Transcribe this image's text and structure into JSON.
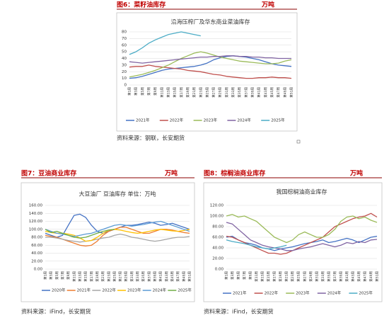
{
  "chart_data": [
    {
      "type": "line",
      "caption": "图6：菜籽油库存",
      "unit": "万吨",
      "title": "沿海压榨厂及华东商业菜油库存",
      "source": "资料来源：钢联，长安期货",
      "categories": [
        "第1周",
        "第3周",
        "第5周",
        "第7周",
        "第9周",
        "第11周",
        "第13周",
        "第15周",
        "第17周",
        "第19周",
        "第21周",
        "第23周",
        "第25周",
        "第27周",
        "第29周",
        "第31周",
        "第33周",
        "第35周",
        "第37周",
        "第39周",
        "第41周",
        "第43周",
        "第45周",
        "第47周",
        "第49周",
        "第51周"
      ],
      "ylim": [
        0,
        80
      ],
      "yticks": [
        0,
        10,
        20,
        30,
        40,
        50,
        60,
        70,
        80
      ],
      "grid": true,
      "series": [
        {
          "name": "2021年",
          "color": "#4472c4",
          "values": [
            10,
            11,
            13,
            16,
            19,
            22,
            24,
            25,
            26,
            27,
            28,
            30,
            33,
            38,
            41,
            43,
            44,
            43,
            42,
            40,
            38,
            35,
            32,
            30,
            29,
            28
          ]
        },
        {
          "name": "2022年",
          "color": "#c0504d",
          "values": [
            27,
            28,
            28,
            30,
            28,
            27,
            26,
            25,
            24,
            22,
            21,
            20,
            18,
            16,
            15,
            13,
            12,
            11,
            10,
            10,
            11,
            11,
            12,
            11,
            11,
            10
          ]
        },
        {
          "name": "2023年",
          "color": "#9bbb59",
          "values": [
            12,
            14,
            16,
            19,
            22,
            26,
            30,
            35,
            40,
            44,
            48,
            50,
            48,
            45,
            42,
            40,
            38,
            36,
            35,
            34,
            33,
            32,
            32,
            33,
            36,
            38
          ]
        },
        {
          "name": "2024年",
          "color": "#8064a2",
          "values": [
            35,
            34,
            33,
            34,
            35,
            36,
            37,
            38,
            39,
            40,
            41,
            42,
            42,
            43,
            43,
            44,
            44,
            43,
            43,
            42,
            42,
            41,
            41,
            40,
            40,
            40
          ]
        },
        {
          "name": "2025年",
          "color": "#4bacc6",
          "values": [
            46,
            50,
            56,
            63,
            68,
            72,
            76,
            78,
            80,
            78,
            76,
            74,
            null,
            null,
            null,
            null,
            null,
            null,
            null,
            null,
            null,
            null,
            null,
            null,
            null,
            null
          ]
        }
      ]
    },
    {
      "type": "line",
      "caption": "图7：豆油商业库存",
      "unit": "万吨",
      "title": "大豆油厂 豆油库存 单位：万吨",
      "source": "资料来源：iFind，长安期货",
      "categories": [
        "第1周",
        "第3周",
        "第5周",
        "第7周",
        "第9周",
        "第11周",
        "第13周",
        "第15周",
        "第17周",
        "第19周",
        "第21周",
        "第23周",
        "第25周",
        "第27周",
        "第29周",
        "第31周",
        "第33周",
        "第35周",
        "第37周",
        "第39周",
        "第41周",
        "第43周",
        "第45周",
        "第47周",
        "第49周",
        "第51周"
      ],
      "ylim": [
        0,
        160
      ],
      "yticks": [
        {
          "value": 0,
          "label": "0.00"
        },
        {
          "value": 20,
          "label": "20.00"
        },
        {
          "value": 40,
          "label": "40.00"
        },
        {
          "value": 60,
          "label": "60.00"
        },
        {
          "value": 80,
          "label": "80.00"
        },
        {
          "value": 100,
          "label": "100.00"
        },
        {
          "value": 120,
          "label": "120.00"
        },
        {
          "value": 140,
          "label": "140.00"
        },
        {
          "value": 160,
          "label": "160.00"
        }
      ],
      "grid": true,
      "series": [
        {
          "name": "2020年",
          "color": "#4472c4",
          "values": [
            90,
            85,
            80,
            85,
            110,
            135,
            138,
            130,
            110,
            95,
            90,
            95,
            100,
            105,
            110,
            110,
            112,
            115,
            118,
            115,
            110,
            112,
            115,
            110,
            105,
            100
          ]
        },
        {
          "name": "2021年",
          "color": "#ed7d31",
          "values": [
            85,
            82,
            80,
            75,
            70,
            65,
            60,
            58,
            60,
            70,
            85,
            95,
            100,
            105,
            105,
            100,
            95,
            90,
            90,
            95,
            100,
            100,
            98,
            95,
            92,
            90
          ]
        },
        {
          "name": "2022年",
          "color": "#a5a5a5",
          "values": [
            80,
            80,
            78,
            75,
            72,
            70,
            68,
            70,
            72,
            75,
            78,
            80,
            85,
            88,
            85,
            80,
            78,
            75,
            72,
            70,
            72,
            75,
            78,
            80,
            80,
            82
          ]
        },
        {
          "name": "2023年",
          "color": "#ffc000",
          "values": [
            95,
            92,
            90,
            90,
            88,
            85,
            78,
            70,
            72,
            80,
            90,
            98,
            100,
            98,
            95,
            92,
            90,
            92,
            95,
            98,
            100,
            98,
            96,
            95,
            97,
            100
          ]
        },
        {
          "name": "2024年",
          "color": "#5b9bd5",
          "values": [
            100,
            95,
            90,
            88,
            85,
            82,
            85,
            88,
            90,
            95,
            100,
            105,
            110,
            112,
            110,
            108,
            110,
            112,
            115,
            118,
            120,
            115,
            110,
            105,
            100,
            95
          ]
        },
        {
          "name": "2025年",
          "color": "#70ad47",
          "values": [
            100,
            92,
            95,
            90,
            85,
            80,
            78,
            80,
            85,
            90,
            95,
            98,
            100,
            null,
            null,
            null,
            null,
            null,
            null,
            null,
            null,
            null,
            null,
            null,
            null,
            null
          ]
        }
      ]
    },
    {
      "type": "line",
      "caption": "图8：棕榈油商业库存",
      "unit": "万吨",
      "title": "我国棕榈油商业库存",
      "source": "资料来源：iFind，长安期货",
      "categories": [
        "第1周",
        "第3周",
        "第5周",
        "第7周",
        "第9周",
        "第11周",
        "第13周",
        "第15周",
        "第17周",
        "第19周",
        "第21周",
        "第23周",
        "第25周",
        "第27周",
        "第29周",
        "第31周",
        "第33周",
        "第35周",
        "第37周",
        "第39周",
        "第41周",
        "第43周",
        "第45周",
        "第47周",
        "第49周",
        "第51周"
      ],
      "ylim": [
        0,
        120
      ],
      "yticks": [
        {
          "value": 0,
          "label": "0.00"
        },
        {
          "value": 20,
          "label": "20.00"
        },
        {
          "value": 40,
          "label": "40.00"
        },
        {
          "value": 60,
          "label": "60.00"
        },
        {
          "value": 80,
          "label": "80.00"
        },
        {
          "value": 100,
          "label": "100.00"
        },
        {
          "value": 120,
          "label": "120.00"
        }
      ],
      "grid": true,
      "series": [
        {
          "name": "2021年",
          "color": "#4472c4",
          "values": [
            60,
            62,
            55,
            50,
            48,
            45,
            40,
            38,
            35,
            38,
            40,
            42,
            45,
            48,
            50,
            52,
            55,
            50,
            52,
            55,
            58,
            55,
            50,
            55,
            60,
            62
          ]
        },
        {
          "name": "2022年",
          "color": "#c0504d",
          "values": [
            62,
            60,
            55,
            50,
            45,
            40,
            35,
            30,
            30,
            28,
            30,
            35,
            40,
            45,
            50,
            55,
            60,
            70,
            80,
            85,
            90,
            95,
            98,
            100,
            105,
            98
          ]
        },
        {
          "name": "2023年",
          "color": "#9bbb59",
          "values": [
            100,
            103,
            98,
            100,
            95,
            90,
            80,
            70,
            60,
            55,
            50,
            55,
            65,
            70,
            65,
            60,
            60,
            65,
            75,
            90,
            98,
            100,
            95,
            98,
            92,
            88
          ]
        },
        {
          "name": "2024年",
          "color": "#8064a2",
          "values": [
            88,
            85,
            75,
            65,
            55,
            50,
            45,
            42,
            40,
            38,
            35,
            35,
            38,
            40,
            42,
            45,
            48,
            45,
            42,
            45,
            50,
            48,
            52,
            50,
            55,
            56
          ]
        },
        {
          "name": "2025年",
          "color": "#4bacc6",
          "values": [
            55,
            52,
            50,
            48,
            45,
            42,
            40,
            38,
            40,
            42,
            45,
            null,
            null,
            null,
            null,
            null,
            null,
            null,
            null,
            null,
            null,
            null,
            null,
            null,
            null,
            null
          ]
        }
      ]
    }
  ]
}
